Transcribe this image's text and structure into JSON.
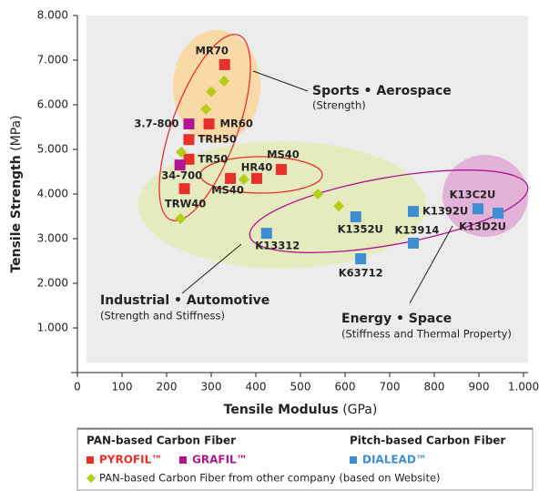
{
  "chart_data": {
    "type": "scatter",
    "y_label": "Tensile Strength",
    "y_unit": "(MPa)",
    "x_label": "Tensile Modulus",
    "x_unit": "(GPa)",
    "xlim": [
      0,
      1000
    ],
    "ylim": [
      0,
      8000
    ],
    "xticks": [
      0,
      100,
      200,
      300,
      400,
      500,
      600,
      700,
      800,
      900,
      {
        "value": 1000,
        "label": "1.000"
      }
    ],
    "yticks": [
      {
        "value": 1000,
        "label": "1.000"
      },
      {
        "value": 2000,
        "label": "2.000"
      },
      {
        "value": 3000,
        "label": "3.000"
      },
      {
        "value": 4000,
        "label": "4.000"
      },
      {
        "value": 5000,
        "label": "5.000"
      },
      {
        "value": 6000,
        "label": "6.000"
      },
      {
        "value": 7000,
        "label": "7.000"
      },
      {
        "value": 8000,
        "label": "8.000"
      }
    ],
    "annotations": [
      {
        "title": "Sports • Aerospace",
        "subtitle": "(Strength)"
      },
      {
        "title": "Industrial • Automotive",
        "subtitle": "(Strength and Stiffness)"
      },
      {
        "title": "Energy • Space",
        "subtitle": "(Stiffness and Thermal Property)"
      }
    ],
    "legend_groups": [
      "PAN-based Carbon Fiber",
      "Pitch-based Carbon Fiber"
    ],
    "series": [
      {
        "name": "PYROFIL™",
        "color": "#e8302a",
        "marker": "square",
        "labels": [
          "MR70",
          "MR60",
          "TRH50",
          "TR50",
          "TRW40",
          "MS40",
          "HR40",
          "MS40"
        ],
        "x": [
          330,
          295,
          250,
          250,
          240,
          343,
          402,
          457
        ],
        "values": [
          6900,
          5570,
          5220,
          4780,
          4120,
          4350,
          4350,
          4550
        ]
      },
      {
        "name": "GRAFIL™",
        "color": "#b0168f",
        "marker": "square",
        "labels": [
          "3.7-800",
          "34-700"
        ],
        "x": [
          250,
          230
        ],
        "values": [
          5570,
          4650
        ]
      },
      {
        "name": "DIALEAD™",
        "color": "#3d8ed0",
        "marker": "square",
        "labels": [
          "K13312",
          "K1352U",
          "K13914",
          "K1392U",
          "K63712",
          "K13C2U",
          "K13D2U"
        ],
        "x": [
          424,
          624,
          753,
          753,
          635,
          898,
          943
        ],
        "values": [
          3120,
          3490,
          2900,
          3610,
          2550,
          3670,
          3570
        ]
      },
      {
        "name": "PAN-based Carbon Fiber from other company (based on Website)",
        "color": "#b5cc18",
        "marker": "diamond",
        "x": [
          329,
          300,
          288,
          233,
          373,
          231,
          539,
          586
        ],
        "values": [
          6530,
          6290,
          5900,
          4940,
          4330,
          3450,
          4000,
          3730
        ]
      }
    ]
  }
}
